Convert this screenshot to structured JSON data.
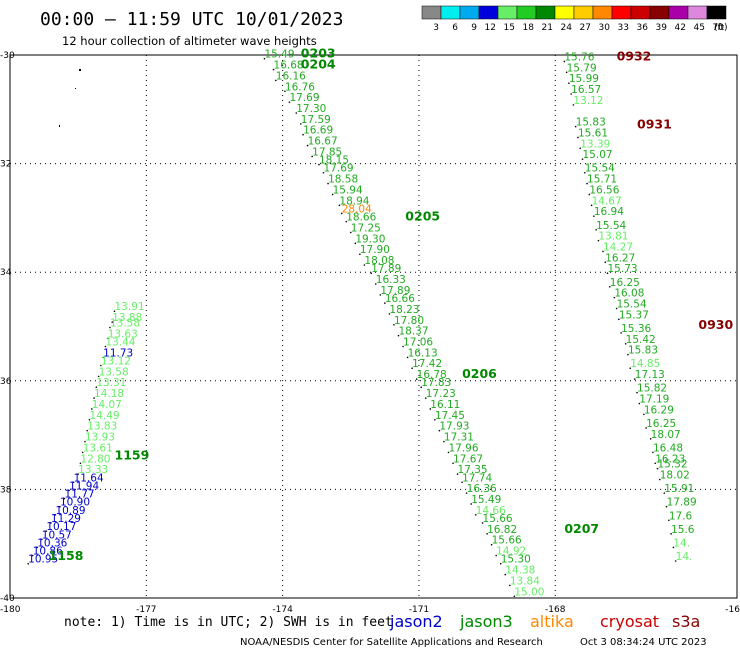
{
  "header": {
    "title": "00:00 – 11:59 UTC 10/01/2023",
    "subtitle": "12 hour collection of altimeter wave heights",
    "scale_unit": "(ft)"
  },
  "color_scale": [
    {
      "label": "3",
      "color": "#888888"
    },
    {
      "label": "6",
      "color": "#00eeee"
    },
    {
      "label": "9",
      "color": "#00aaee"
    },
    {
      "label": "12",
      "color": "#0000dd"
    },
    {
      "label": "15",
      "color": "#66ee66"
    },
    {
      "label": "18",
      "color": "#22cc22"
    },
    {
      "label": "21",
      "color": "#008800"
    },
    {
      "label": "24",
      "color": "#ffff00"
    },
    {
      "label": "27",
      "color": "#ffcc00"
    },
    {
      "label": "30",
      "color": "#ff8800"
    },
    {
      "label": "33",
      "color": "#ff0000"
    },
    {
      "label": "36",
      "color": "#cc0000"
    },
    {
      "label": "39",
      "color": "#880000"
    },
    {
      "label": "42",
      "color": "#aa00aa"
    },
    {
      "label": "45",
      "color": "#dd88dd"
    },
    {
      "label": "70",
      "color": "#000000"
    }
  ],
  "footer": {
    "note": "note:  1) Time is in UTC; 2) SWH is in feet",
    "credit": "NOAA/NESDIS Center for Satellite Applications and Research",
    "timestamp": "Oct  3 08:34:24 UTC 2023",
    "satellites": [
      {
        "name": "jason2",
        "color": "#0000cc"
      },
      {
        "name": "jason3",
        "color": "#008800"
      },
      {
        "name": "altika",
        "color": "#ff8800"
      },
      {
        "name": "cryosat",
        "color": "#cc0000"
      },
      {
        "name": "s3a",
        "color": "#880000"
      }
    ]
  },
  "chart_data": {
    "type": "scatter",
    "title": "00:00 – 11:59 UTC 10/01/2023",
    "subtitle": "12 hour collection of altimeter wave heights",
    "xlim": [
      -180,
      -164
    ],
    "ylim": [
      -40,
      -30
    ],
    "x_ticks": [
      "-180",
      "-177",
      "-174",
      "-171",
      "-168",
      "-16"
    ],
    "y_ticks": [
      "-30",
      "32",
      "34",
      "36",
      "38",
      "-40"
    ],
    "grid": true,
    "tracks": [
      {
        "satellite": "jason3",
        "color": "#22aa22",
        "time_labels": [
          {
            "text": "0203",
            "lon": -173.6,
            "lat": -30.05
          },
          {
            "text": "0204",
            "lon": -173.6,
            "lat": -30.25
          },
          {
            "text": "0205",
            "lon": -171.3,
            "lat": -33.05
          },
          {
            "text": "0206",
            "lon": -170.05,
            "lat": -35.95
          },
          {
            "text": "0207",
            "lon": -167.8,
            "lat": -38.8
          }
        ],
        "points": [
          {
            "lon": -174.4,
            "lat": -30.05,
            "swh": "15.49"
          },
          {
            "lon": -174.2,
            "lat": -30.25,
            "swh": "16.68"
          },
          {
            "lon": -174.15,
            "lat": -30.45,
            "swh": "16.16"
          },
          {
            "lon": -173.95,
            "lat": -30.65,
            "swh": "16.76"
          },
          {
            "lon": -173.85,
            "lat": -30.85,
            "swh": "17.69"
          },
          {
            "lon": -173.7,
            "lat": -31.05,
            "swh": "17.30"
          },
          {
            "lon": -173.6,
            "lat": -31.25,
            "swh": "17.59"
          },
          {
            "lon": -173.55,
            "lat": -31.45,
            "swh": "16.69"
          },
          {
            "lon": -173.45,
            "lat": -31.65,
            "swh": "16.67"
          },
          {
            "lon": -173.35,
            "lat": -31.85,
            "swh": "17.85"
          },
          {
            "lon": -173.2,
            "lat": -32.0,
            "swh": "18.15"
          },
          {
            "lon": -173.1,
            "lat": -32.15,
            "swh": "17.69"
          },
          {
            "lon": -173.0,
            "lat": -32.35,
            "swh": "18.58"
          },
          {
            "lon": -172.9,
            "lat": -32.55,
            "swh": "15.94"
          },
          {
            "lon": -172.75,
            "lat": -32.75,
            "swh": "18.94"
          },
          {
            "lon": -172.7,
            "lat": -32.9,
            "swh": "28.04",
            "color": "#ff8800"
          },
          {
            "lon": -172.6,
            "lat": -33.05,
            "swh": "18.66"
          },
          {
            "lon": -172.5,
            "lat": -33.25,
            "swh": "17.25"
          },
          {
            "lon": -172.4,
            "lat": -33.45,
            "swh": "19.30"
          },
          {
            "lon": -172.3,
            "lat": -33.65,
            "swh": "17.90"
          },
          {
            "lon": -172.2,
            "lat": -33.85,
            "swh": "18.08"
          },
          {
            "lon": -172.05,
            "lat": -34.0,
            "swh": "17.89"
          },
          {
            "lon": -171.95,
            "lat": -34.2,
            "swh": "16.33"
          },
          {
            "lon": -171.85,
            "lat": -34.4,
            "swh": "17.89"
          },
          {
            "lon": -171.75,
            "lat": -34.55,
            "swh": "16.66"
          },
          {
            "lon": -171.65,
            "lat": -34.75,
            "swh": "18.23"
          },
          {
            "lon": -171.55,
            "lat": -34.95,
            "swh": "17.80"
          },
          {
            "lon": -171.45,
            "lat": -35.15,
            "swh": "18.37"
          },
          {
            "lon": -171.35,
            "lat": -35.35,
            "swh": "17.06"
          },
          {
            "lon": -171.25,
            "lat": -35.55,
            "swh": "16.13"
          },
          {
            "lon": -171.15,
            "lat": -35.75,
            "swh": "17.42"
          },
          {
            "lon": -171.05,
            "lat": -35.95,
            "swh": "16.78"
          },
          {
            "lon": -170.95,
            "lat": -36.1,
            "swh": "17.83"
          },
          {
            "lon": -170.85,
            "lat": -36.3,
            "swh": "17.23"
          },
          {
            "lon": -170.75,
            "lat": -36.5,
            "swh": "16.11"
          },
          {
            "lon": -170.65,
            "lat": -36.7,
            "swh": "17.45"
          },
          {
            "lon": -170.55,
            "lat": -36.9,
            "swh": "17.93"
          },
          {
            "lon": -170.45,
            "lat": -37.1,
            "swh": "17.31"
          },
          {
            "lon": -170.35,
            "lat": -37.3,
            "swh": "17.96"
          },
          {
            "lon": -170.25,
            "lat": -37.5,
            "swh": "17.67"
          },
          {
            "lon": -170.15,
            "lat": -37.7,
            "swh": "17.35"
          },
          {
            "lon": -170.05,
            "lat": -37.85,
            "swh": "17.74"
          },
          {
            "lon": -169.95,
            "lat": -38.05,
            "swh": "16.36"
          },
          {
            "lon": -169.85,
            "lat": -38.25,
            "swh": "15.49"
          },
          {
            "lon": -169.75,
            "lat": -38.45,
            "swh": "14.66",
            "color": "#66ee66"
          },
          {
            "lon": -169.6,
            "lat": -38.6,
            "swh": "15.66"
          },
          {
            "lon": -169.5,
            "lat": -38.8,
            "swh": "16.82"
          },
          {
            "lon": -169.4,
            "lat": -39.0,
            "swh": "15.66"
          },
          {
            "lon": -169.3,
            "lat": -39.2,
            "swh": "14.92",
            "color": "#66ee66"
          },
          {
            "lon": -169.2,
            "lat": -39.35,
            "swh": "15.30"
          },
          {
            "lon": -169.1,
            "lat": -39.55,
            "swh": "14.38",
            "color": "#66ee66"
          },
          {
            "lon": -169.0,
            "lat": -39.75,
            "swh": "13.84",
            "color": "#66ee66"
          },
          {
            "lon": -168.9,
            "lat": -39.95,
            "swh": "15.00",
            "color": "#66ee66"
          }
        ]
      },
      {
        "satellite": "s3a",
        "color": "#22aa22",
        "time_labels": [
          {
            "text": "0932",
            "lon": -166.65,
            "lat": -30.1,
            "color": "#880000"
          },
          {
            "text": "0931",
            "lon": -166.2,
            "lat": -31.35,
            "color": "#880000"
          },
          {
            "text": "0930",
            "lon": -164.85,
            "lat": -35.05,
            "color": "#880000"
          }
        ],
        "points": [
          {
            "lon": -167.8,
            "lat": -30.1,
            "swh": "15.76"
          },
          {
            "lon": -167.75,
            "lat": -30.3,
            "swh": "15.79"
          },
          {
            "lon": -167.7,
            "lat": -30.5,
            "swh": "15.99"
          },
          {
            "lon": -167.65,
            "lat": -30.7,
            "swh": "16.57"
          },
          {
            "lon": -167.6,
            "lat": -30.9,
            "swh": "13.12",
            "color": "#66ee66"
          },
          {
            "lon": -167.55,
            "lat": -31.3,
            "swh": "15.83"
          },
          {
            "lon": -167.5,
            "lat": -31.5,
            "swh": "15.61"
          },
          {
            "lon": -167.45,
            "lat": -31.7,
            "swh": "13.39",
            "color": "#66ee66"
          },
          {
            "lon": -167.4,
            "lat": -31.9,
            "swh": "15.07"
          },
          {
            "lon": -167.35,
            "lat": -32.15,
            "swh": "15.54"
          },
          {
            "lon": -167.3,
            "lat": -32.35,
            "swh": "15.71"
          },
          {
            "lon": -167.25,
            "lat": -32.55,
            "swh": "16.56"
          },
          {
            "lon": -167.2,
            "lat": -32.75,
            "swh": "14.67",
            "color": "#66ee66"
          },
          {
            "lon": -167.15,
            "lat": -32.95,
            "swh": "16.94"
          },
          {
            "lon": -167.1,
            "lat": -33.2,
            "swh": "15.54"
          },
          {
            "lon": -167.05,
            "lat": -33.4,
            "swh": "13.81",
            "color": "#66ee66"
          },
          {
            "lon": -166.95,
            "lat": -33.6,
            "swh": "14.27",
            "color": "#66ee66"
          },
          {
            "lon": -166.9,
            "lat": -33.8,
            "swh": "16.27"
          },
          {
            "lon": -166.85,
            "lat": -34.0,
            "swh": "15.73"
          },
          {
            "lon": -166.8,
            "lat": -34.25,
            "swh": "16.25"
          },
          {
            "lon": -166.7,
            "lat": -34.45,
            "swh": "16.08"
          },
          {
            "lon": -166.65,
            "lat": -34.65,
            "swh": "15.54"
          },
          {
            "lon": -166.6,
            "lat": -34.85,
            "swh": "15.37"
          },
          {
            "lon": -166.55,
            "lat": -35.1,
            "swh": "15.36"
          },
          {
            "lon": -166.45,
            "lat": -35.3,
            "swh": "15.42"
          },
          {
            "lon": -166.4,
            "lat": -35.5,
            "swh": "15.83"
          },
          {
            "lon": -166.35,
            "lat": -35.75,
            "swh": "14.85",
            "color": "#66ee66"
          },
          {
            "lon": -166.25,
            "lat": -35.95,
            "swh": "17.13"
          },
          {
            "lon": -166.2,
            "lat": -36.2,
            "swh": "15.82"
          },
          {
            "lon": -166.15,
            "lat": -36.4,
            "swh": "17.19"
          },
          {
            "lon": -166.05,
            "lat": -36.6,
            "swh": "16.29"
          },
          {
            "lon": -166.0,
            "lat": -36.85,
            "swh": "16.25"
          },
          {
            "lon": -165.9,
            "lat": -37.05,
            "swh": "18.07"
          },
          {
            "lon": -165.85,
            "lat": -37.3,
            "swh": "16.48"
          },
          {
            "lon": -165.8,
            "lat": -37.5,
            "swh": "16.23"
          },
          {
            "lon": -165.75,
            "lat": -37.6,
            "swh": "15.32"
          },
          {
            "lon": -165.7,
            "lat": -37.8,
            "swh": "18.02"
          },
          {
            "lon": -165.6,
            "lat": -38.05,
            "swh": "15.91"
          },
          {
            "lon": -165.55,
            "lat": -38.3,
            "swh": "17.89"
          },
          {
            "lon": -165.5,
            "lat": -38.55,
            "swh": "17.6"
          },
          {
            "lon": -165.45,
            "lat": -38.8,
            "swh": "15.6"
          },
          {
            "lon": -165.4,
            "lat": -39.05,
            "swh": "14.",
            "color": "#66ee66"
          },
          {
            "lon": -165.35,
            "lat": -39.3,
            "swh": "14.",
            "color": "#66ee66"
          }
        ]
      },
      {
        "satellite": "jason3 / jason2",
        "color": "#66ee66",
        "time_labels": [
          {
            "text": "1159",
            "lon": -177.7,
            "lat": -37.45,
            "color": "#008800"
          },
          {
            "text": "1158",
            "lon": -179.15,
            "lat": -39.3,
            "color": "#008800"
          }
        ],
        "points": [
          {
            "lon": -177.7,
            "lat": -34.7,
            "swh": "13.91"
          },
          {
            "lon": -177.75,
            "lat": -34.9,
            "swh": "13.88"
          },
          {
            "lon": -177.8,
            "lat": -35.0,
            "swh": "13.58"
          },
          {
            "lon": -177.85,
            "lat": -35.2,
            "swh": "13.63"
          },
          {
            "lon": -177.9,
            "lat": -35.35,
            "swh": "13.44"
          },
          {
            "lon": -177.95,
            "lat": -35.55,
            "swh": "11.73",
            "color": "#0000cc"
          },
          {
            "lon": -178.0,
            "lat": -35.7,
            "swh": "13.12"
          },
          {
            "lon": -178.05,
            "lat": -35.9,
            "swh": "13.58"
          },
          {
            "lon": -178.1,
            "lat": -36.1,
            "swh": "13.31"
          },
          {
            "lon": -178.15,
            "lat": -36.3,
            "swh": "14.18"
          },
          {
            "lon": -178.2,
            "lat": -36.5,
            "swh": "14.07"
          },
          {
            "lon": -178.25,
            "lat": -36.7,
            "swh": "14.49"
          },
          {
            "lon": -178.3,
            "lat": -36.9,
            "swh": "13.83"
          },
          {
            "lon": -178.35,
            "lat": -37.1,
            "swh": "13.93"
          },
          {
            "lon": -178.4,
            "lat": -37.3,
            "swh": "13.61"
          },
          {
            "lon": -178.45,
            "lat": -37.5,
            "swh": "12.80"
          },
          {
            "lon": -178.5,
            "lat": -37.7,
            "swh": "13.33"
          },
          {
            "lon": -178.6,
            "lat": -37.85,
            "swh": "11.64",
            "color": "#0000cc"
          },
          {
            "lon": -178.7,
            "lat": -38.0,
            "swh": "11.94",
            "color": "#0000cc"
          },
          {
            "lon": -178.8,
            "lat": -38.15,
            "swh": "11.77",
            "color": "#0000cc"
          },
          {
            "lon": -178.9,
            "lat": -38.3,
            "swh": "10.90",
            "color": "#0000cc"
          },
          {
            "lon": -179.0,
            "lat": -38.45,
            "swh": "10.89",
            "color": "#0000cc"
          },
          {
            "lon": -179.1,
            "lat": -38.6,
            "swh": "11.29",
            "color": "#0000cc"
          },
          {
            "lon": -179.2,
            "lat": -38.75,
            "swh": "10.17",
            "color": "#0000cc"
          },
          {
            "lon": -179.3,
            "lat": -38.9,
            "swh": "10.57",
            "color": "#0000cc"
          },
          {
            "lon": -179.4,
            "lat": -39.05,
            "swh": "10.36",
            "color": "#0000cc"
          },
          {
            "lon": -179.5,
            "lat": -39.2,
            "swh": "10.86",
            "color": "#0000cc"
          },
          {
            "lon": -179.6,
            "lat": -39.35,
            "swh": "10.95",
            "color": "#0000cc"
          }
        ]
      }
    ]
  }
}
